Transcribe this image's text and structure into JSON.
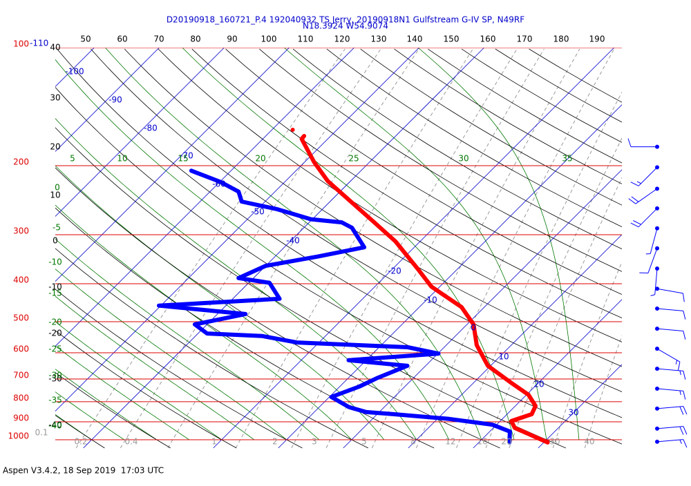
{
  "chart_data": {
    "type": "skewt",
    "title": "D20190918_160721_P.4 192040932 TS Jerry, 20190918N1 Gulfstream G-IV SP, N49RF",
    "subtitle": "N18.3924 W54.9074",
    "footer": "Aspen V3.4.2, 18 Sep 2019  17:03 UTC",
    "ylim": [
      1050,
      100
    ],
    "log_y": true,
    "yticks": [
      100,
      200,
      300,
      400,
      500,
      600,
      700,
      800,
      900,
      1000
    ],
    "xlim": [
      -45.6,
      41.6
    ],
    "skew": 1,
    "isotherms": [
      -110,
      -100,
      -90,
      -80,
      -70,
      -60,
      -50,
      -40,
      -20,
      -10,
      0,
      10,
      20,
      30
    ],
    "dry_adiabats_top": [
      50,
      60,
      70,
      80,
      90,
      100,
      110,
      120,
      130,
      140,
      150,
      160,
      170,
      180,
      190
    ],
    "dry_adiabats_left": [
      40,
      30,
      20,
      10,
      0,
      -10,
      -20,
      -30,
      -40
    ],
    "moist_adiabats_top": [
      5,
      10,
      15,
      20,
      25,
      30,
      35
    ],
    "moist_adiabats_left": [
      0,
      -5,
      -10,
      -15,
      -20,
      -25,
      -30,
      -35,
      -40
    ],
    "mixing_ratios": [
      0.1,
      0.2,
      0.4,
      1,
      2,
      3,
      5,
      8,
      12,
      16,
      20,
      30,
      40
    ],
    "temperature": {
      "color": "#ff0000",
      "pressure": [
        1016,
        933,
        896,
        861,
        820,
        768,
        717,
        648,
        574,
        508,
        459,
        407,
        367,
        312,
        277,
        240,
        219,
        196,
        171,
        168,
        null,
        162
      ],
      "values": [
        30.6,
        23.3,
        21.7,
        23.8,
        23.1,
        20.3,
        15.9,
        9.6,
        4.7,
        1.0,
        -3.5,
        -11.3,
        -16.1,
        -23.8,
        -30.4,
        -38.4,
        -43.5,
        -48.5,
        -54.0,
        -54.1,
        null,
        -56.8
      ]
    },
    "dewpoint": {
      "color": "#0000ff",
      "pressure": [
        1016,
        953,
        915,
        885,
        861,
        850,
        826,
        778,
        732,
        697,
        648,
        627,
        603,
        581,
        565,
        544,
        536,
        508,
        478,
        455,
        437,
        398,
        387,
        360,
        341,
        323,
        288,
        279,
        274,
        258,
        247,
        233,
        220,
        206
      ],
      "values": [
        24.7,
        23.1,
        19.3,
        11.8,
        2.6,
        -2.0,
        -5.4,
        -9.7,
        -7.0,
        -5.6,
        -2.8,
        -12.7,
        0.1,
        -5.6,
        -23.4,
        -29.7,
        -38.6,
        -41.9,
        -35.7,
        -50.3,
        -32.8,
        -36.8,
        -42.3,
        -40.0,
        -33.4,
        -27.7,
        -32.6,
        -35.0,
        -40.2,
        -47.1,
        -53.6,
        -55.6,
        -59.9,
        -66.1
      ]
    },
    "wind": {
      "color": "#0000ff",
      "pressure": [
        179,
        202,
        229,
        257,
        289,
        325,
        366,
        412,
        463,
        521,
        586,
        659,
        741,
        833,
        937,
        1012
      ],
      "direction": [
        270,
        225,
        235,
        225,
        195,
        200,
        185,
        100,
        95,
        95,
        120,
        95,
        95,
        85,
        85,
        85
      ],
      "speed": [
        10,
        15,
        20,
        20,
        5,
        10,
        5,
        10,
        10,
        10,
        15,
        15,
        15,
        20,
        20,
        15
      ]
    }
  }
}
